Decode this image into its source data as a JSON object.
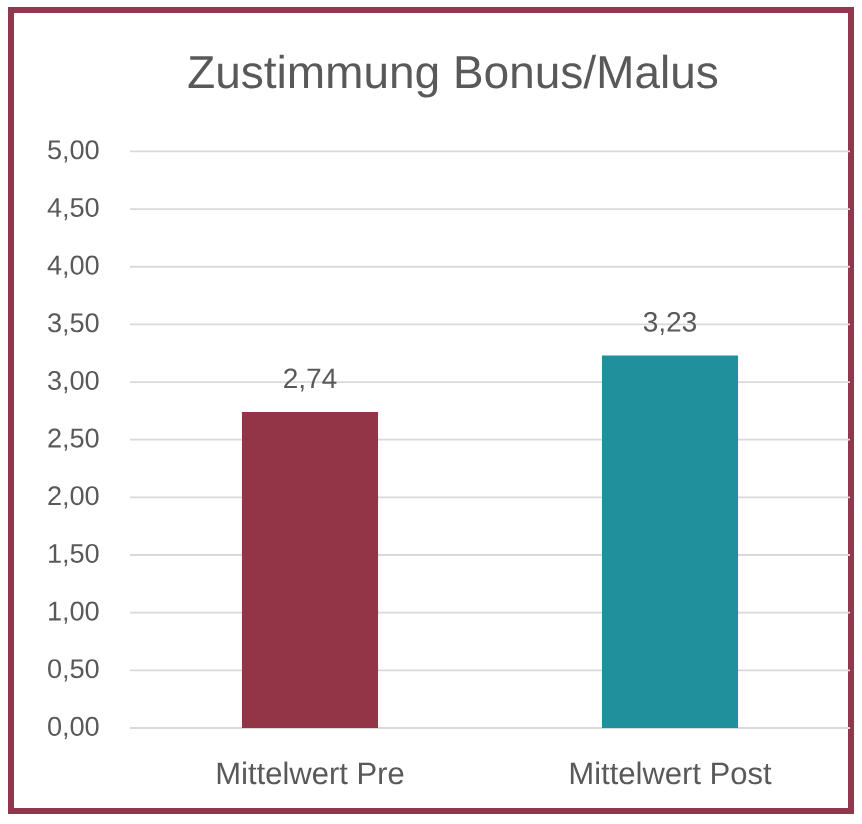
{
  "chart_data": {
    "type": "bar",
    "title": "Zustimmung Bonus/Malus",
    "categories": [
      "Mittelwert Pre",
      "Mittelwert Post"
    ],
    "values": [
      2.74,
      3.23
    ],
    "colors": [
      "#943447",
      "#1f909c"
    ],
    "value_labels": [
      "2,74",
      "3,23"
    ],
    "ylim": [
      0,
      5
    ],
    "yticks": [
      {
        "value": 0,
        "label": "0,00"
      },
      {
        "value": 0.5,
        "label": "0,50"
      },
      {
        "value": 1,
        "label": "1,00"
      },
      {
        "value": 1.5,
        "label": "1,50"
      },
      {
        "value": 2,
        "label": "2,00"
      },
      {
        "value": 2.5,
        "label": "2,50"
      },
      {
        "value": 3,
        "label": "3,00"
      },
      {
        "value": 3.5,
        "label": "3,50"
      },
      {
        "value": 4,
        "label": "4,00"
      },
      {
        "value": 4.5,
        "label": "4,50"
      },
      {
        "value": 5,
        "label": "5,00"
      }
    ],
    "grid": "y"
  }
}
